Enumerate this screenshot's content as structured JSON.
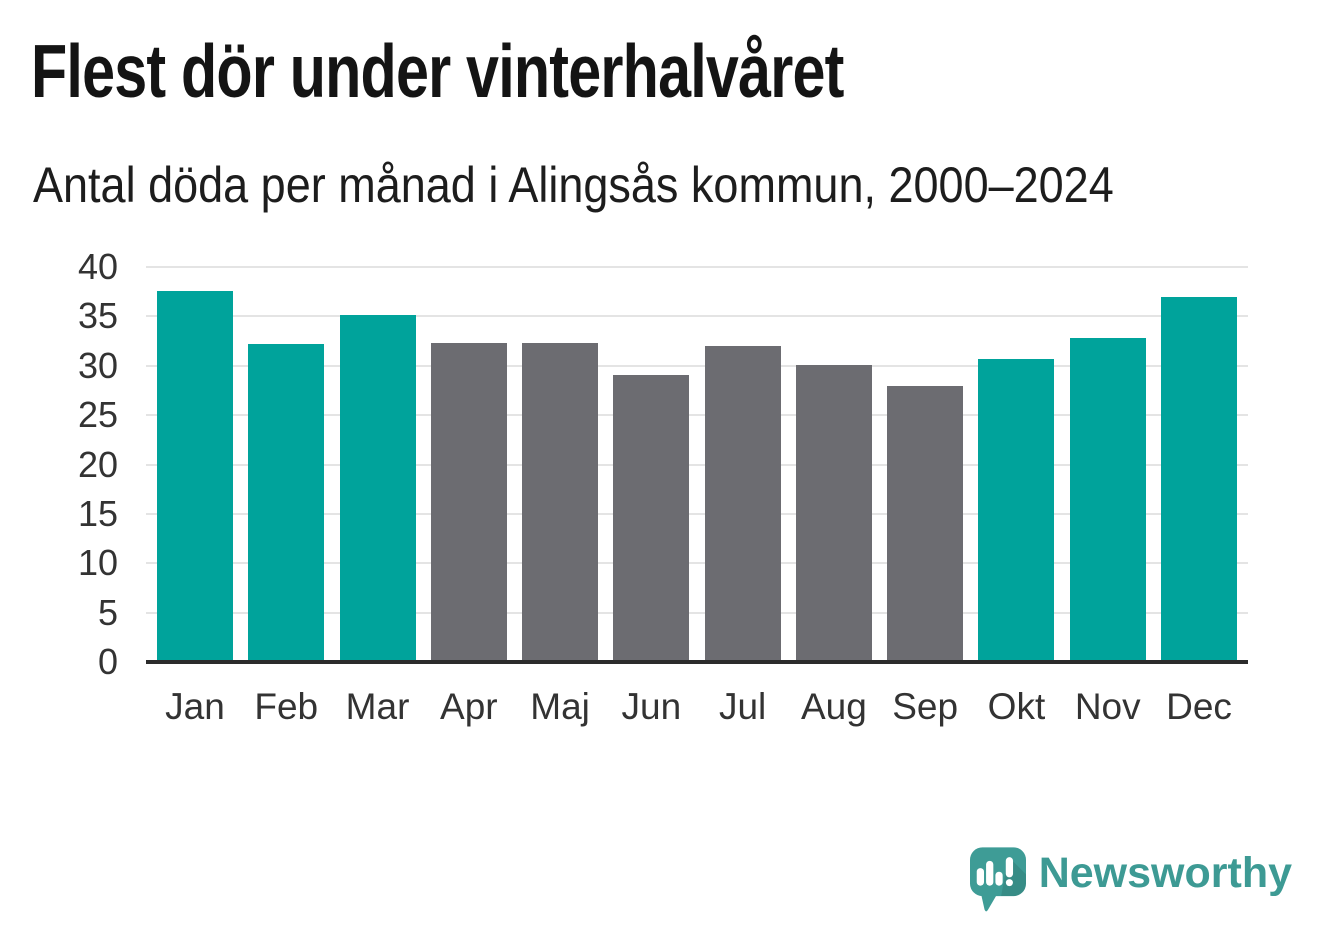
{
  "header": {
    "title": "Flest dör under vinterhalvåret",
    "subtitle": "Antal döda per månad i Alingsås kommun, 2000–2024"
  },
  "chart_data": {
    "type": "bar",
    "title": "Flest dör under vinterhalvåret",
    "subtitle": "Antal döda per månad i Alingsås kommun, 2000–2024",
    "categories": [
      "Jan",
      "Feb",
      "Mar",
      "Apr",
      "Maj",
      "Jun",
      "Jul",
      "Aug",
      "Sep",
      "Okt",
      "Nov",
      "Dec"
    ],
    "values": [
      37.6,
      32.2,
      35.1,
      32.3,
      32.3,
      29.1,
      32.0,
      30.1,
      28.0,
      30.7,
      32.8,
      37.0
    ],
    "bar_colors": [
      "#00A39B",
      "#00A39B",
      "#00A39B",
      "#6C6C71",
      "#6C6C71",
      "#6C6C71",
      "#6C6C71",
      "#6C6C71",
      "#6C6C71",
      "#00A39B",
      "#00A39B",
      "#00A39B"
    ],
    "highlighted_categories": [
      "Jan",
      "Feb",
      "Mar",
      "Okt",
      "Nov",
      "Dec"
    ],
    "highlight_color": "#00A39B",
    "base_color": "#6C6C71",
    "xlabel": "",
    "ylabel": "",
    "ylim": [
      0,
      40
    ],
    "yticks": [
      0,
      5,
      10,
      15,
      20,
      25,
      30,
      35,
      40
    ],
    "grid": true,
    "gridline_color": "#E4E4E4",
    "axis_line_color": "#2B2B2B",
    "legend": false
  },
  "branding": {
    "logo_text": "Newsworthy",
    "logo_color": "#3D9A94",
    "logo_icon": "newsworthy-speech-bubble-chart-icon"
  }
}
